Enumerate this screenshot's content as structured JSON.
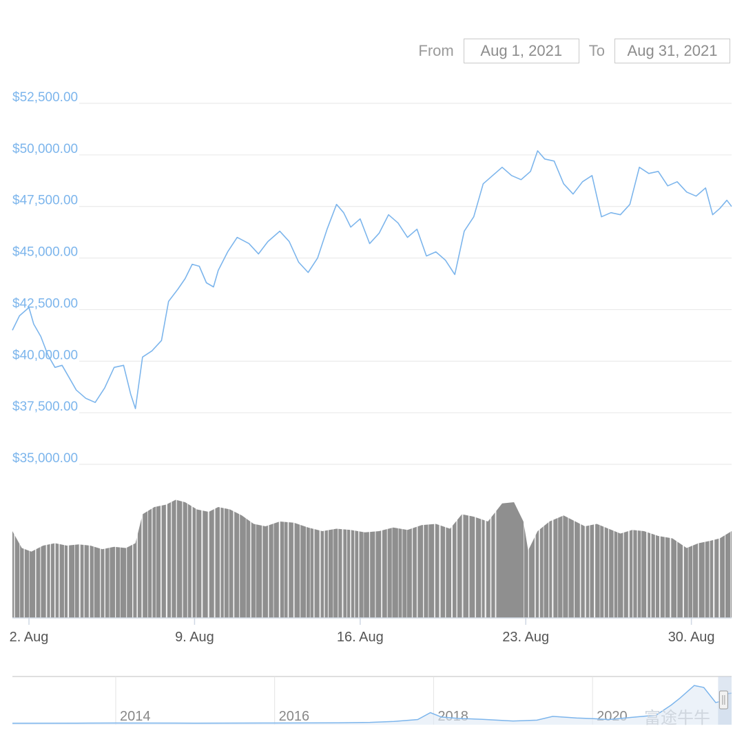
{
  "range_selector": {
    "from_label": "From",
    "from_value": "Aug 1, 2021",
    "to_label": "To",
    "to_value": "Aug 31, 2021"
  },
  "watermark": "富途牛牛",
  "colors": {
    "price_line": "#7cb5ec",
    "volume_fill": "#8f8f8f",
    "volume_gap": "#ffffff",
    "grid": "#e6e6e6",
    "navigator_fill": "#dfe9f5",
    "navigator_handle": "#c4d3e8"
  },
  "chart_data": [
    {
      "type": "line",
      "name": "price",
      "ylim": [
        35000,
        52500
      ],
      "yticks": [
        "$52,500.00",
        "$50,000.00",
        "$47,500.00",
        "$45,000.00",
        "$42,500.00",
        "$40,000.00",
        "$37,500.00",
        "$35,000.00"
      ],
      "ytick_values": [
        52500,
        50000,
        47500,
        45000,
        42500,
        40000,
        37500,
        35000
      ],
      "xlim": [
        1.3,
        31.7
      ],
      "xticks": [
        "2. Aug",
        "9. Aug",
        "16. Aug",
        "23. Aug",
        "30. Aug"
      ],
      "xtick_values": [
        2,
        9,
        16,
        23,
        30
      ],
      "points": [
        [
          1.3,
          41500
        ],
        [
          1.6,
          42200
        ],
        [
          2.0,
          42600
        ],
        [
          2.2,
          41800
        ],
        [
          2.5,
          41200
        ],
        [
          2.8,
          40300
        ],
        [
          3.1,
          39700
        ],
        [
          3.4,
          39800
        ],
        [
          3.7,
          39200
        ],
        [
          4.0,
          38600
        ],
        [
          4.4,
          38200
        ],
        [
          4.8,
          38000
        ],
        [
          5.2,
          38700
        ],
        [
          5.6,
          39700
        ],
        [
          6.0,
          39800
        ],
        [
          6.3,
          38400
        ],
        [
          6.5,
          37700
        ],
        [
          6.8,
          40200
        ],
        [
          7.2,
          40500
        ],
        [
          7.6,
          41000
        ],
        [
          7.9,
          42900
        ],
        [
          8.3,
          43500
        ],
        [
          8.6,
          44000
        ],
        [
          8.9,
          44700
        ],
        [
          9.2,
          44600
        ],
        [
          9.5,
          43800
        ],
        [
          9.8,
          43600
        ],
        [
          10.0,
          44400
        ],
        [
          10.4,
          45300
        ],
        [
          10.8,
          46000
        ],
        [
          11.3,
          45700
        ],
        [
          11.7,
          45200
        ],
        [
          12.1,
          45800
        ],
        [
          12.6,
          46300
        ],
        [
          13.0,
          45800
        ],
        [
          13.4,
          44800
        ],
        [
          13.8,
          44300
        ],
        [
          14.2,
          45000
        ],
        [
          14.6,
          46400
        ],
        [
          15.0,
          47600
        ],
        [
          15.3,
          47200
        ],
        [
          15.6,
          46500
        ],
        [
          16.0,
          46900
        ],
        [
          16.4,
          45700
        ],
        [
          16.8,
          46200
        ],
        [
          17.2,
          47100
        ],
        [
          17.6,
          46700
        ],
        [
          18.0,
          46000
        ],
        [
          18.4,
          46400
        ],
        [
          18.8,
          45100
        ],
        [
          19.2,
          45300
        ],
        [
          19.6,
          44900
        ],
        [
          20.0,
          44200
        ],
        [
          20.4,
          46300
        ],
        [
          20.8,
          47000
        ],
        [
          21.2,
          48600
        ],
        [
          21.6,
          49000
        ],
        [
          22.0,
          49400
        ],
        [
          22.4,
          49000
        ],
        [
          22.8,
          48800
        ],
        [
          23.2,
          49200
        ],
        [
          23.5,
          50200
        ],
        [
          23.8,
          49800
        ],
        [
          24.2,
          49700
        ],
        [
          24.6,
          48600
        ],
        [
          25.0,
          48100
        ],
        [
          25.4,
          48700
        ],
        [
          25.8,
          49000
        ],
        [
          26.2,
          47000
        ],
        [
          26.6,
          47200
        ],
        [
          27.0,
          47100
        ],
        [
          27.4,
          47600
        ],
        [
          27.8,
          49400
        ],
        [
          28.2,
          49100
        ],
        [
          28.6,
          49200
        ],
        [
          29.0,
          48500
        ],
        [
          29.4,
          48700
        ],
        [
          29.8,
          48200
        ],
        [
          30.2,
          48000
        ],
        [
          30.6,
          48400
        ],
        [
          30.9,
          47100
        ],
        [
          31.2,
          47400
        ],
        [
          31.5,
          47800
        ],
        [
          31.7,
          47500
        ]
      ]
    },
    {
      "type": "area",
      "name": "volume",
      "xlim": [
        1.3,
        31.7
      ],
      "points": [
        [
          1.3,
          0.72
        ],
        [
          1.7,
          0.58
        ],
        [
          2.1,
          0.55
        ],
        [
          2.6,
          0.6
        ],
        [
          3.1,
          0.62
        ],
        [
          3.6,
          0.6
        ],
        [
          4.1,
          0.61
        ],
        [
          4.6,
          0.6
        ],
        [
          5.1,
          0.57
        ],
        [
          5.6,
          0.59
        ],
        [
          6.1,
          0.58
        ],
        [
          6.5,
          0.62
        ],
        [
          6.8,
          0.86
        ],
        [
          7.3,
          0.92
        ],
        [
          7.8,
          0.94
        ],
        [
          8.2,
          0.98
        ],
        [
          8.6,
          0.96
        ],
        [
          9.1,
          0.9
        ],
        [
          9.6,
          0.88
        ],
        [
          10.0,
          0.92
        ],
        [
          10.5,
          0.9
        ],
        [
          11.0,
          0.85
        ],
        [
          11.5,
          0.78
        ],
        [
          12.0,
          0.76
        ],
        [
          12.6,
          0.8
        ],
        [
          13.2,
          0.79
        ],
        [
          13.8,
          0.75
        ],
        [
          14.4,
          0.72
        ],
        [
          15.0,
          0.74
        ],
        [
          15.6,
          0.73
        ],
        [
          16.2,
          0.71
        ],
        [
          16.8,
          0.72
        ],
        [
          17.4,
          0.75
        ],
        [
          18.0,
          0.73
        ],
        [
          18.6,
          0.77
        ],
        [
          19.2,
          0.78
        ],
        [
          19.8,
          0.74
        ],
        [
          20.3,
          0.86
        ],
        [
          20.8,
          0.84
        ],
        [
          21.4,
          0.8
        ],
        [
          22.0,
          0.95
        ],
        [
          22.5,
          0.96
        ],
        [
          22.9,
          0.8
        ],
        [
          23.1,
          0.56
        ],
        [
          23.5,
          0.72
        ],
        [
          24.0,
          0.8
        ],
        [
          24.6,
          0.85
        ],
        [
          25.0,
          0.81
        ],
        [
          25.5,
          0.76
        ],
        [
          26.0,
          0.78
        ],
        [
          26.5,
          0.74
        ],
        [
          27.0,
          0.7
        ],
        [
          27.5,
          0.73
        ],
        [
          28.0,
          0.72
        ],
        [
          28.6,
          0.68
        ],
        [
          29.2,
          0.66
        ],
        [
          29.8,
          0.58
        ],
        [
          30.3,
          0.62
        ],
        [
          30.8,
          0.64
        ],
        [
          31.2,
          0.66
        ],
        [
          31.7,
          0.72
        ]
      ]
    },
    {
      "type": "line",
      "name": "navigator",
      "xlim": [
        2012.7,
        2021.75
      ],
      "ylim": [
        0,
        70000
      ],
      "xticks": [
        "2014",
        "2016",
        "2018",
        "2020"
      ],
      "xtick_values": [
        2014,
        2016,
        2018,
        2020
      ],
      "selected_range": [
        2021.58,
        2021.75
      ],
      "points": [
        [
          2012.7,
          100
        ],
        [
          2013.5,
          300
        ],
        [
          2014.0,
          600
        ],
        [
          2015.0,
          300
        ],
        [
          2016.0,
          500
        ],
        [
          2016.8,
          900
        ],
        [
          2017.2,
          1500
        ],
        [
          2017.5,
          3000
        ],
        [
          2017.8,
          6000
        ],
        [
          2017.96,
          17000
        ],
        [
          2018.1,
          10000
        ],
        [
          2018.3,
          8000
        ],
        [
          2018.6,
          6500
        ],
        [
          2019.0,
          3700
        ],
        [
          2019.3,
          5000
        ],
        [
          2019.5,
          11000
        ],
        [
          2019.8,
          8500
        ],
        [
          2020.0,
          7500
        ],
        [
          2020.2,
          6000
        ],
        [
          2020.5,
          9500
        ],
        [
          2020.8,
          13000
        ],
        [
          2020.99,
          29000
        ],
        [
          2021.1,
          40000
        ],
        [
          2021.28,
          60000
        ],
        [
          2021.4,
          57000
        ],
        [
          2021.55,
          33000
        ],
        [
          2021.62,
          35000
        ],
        [
          2021.7,
          47000
        ],
        [
          2021.75,
          48000
        ]
      ]
    }
  ]
}
